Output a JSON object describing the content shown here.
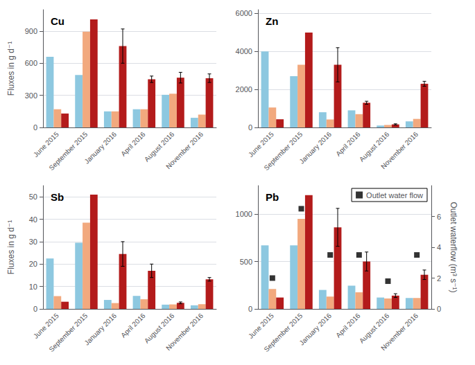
{
  "chart_data": [
    {
      "type": "bar",
      "title": "Cu",
      "categories": [
        "June 2015",
        "September 2015",
        "January 2016",
        "April 2016",
        "August 2016",
        "November 2016"
      ],
      "series": [
        {
          "color": "#8DC8E0",
          "values": [
            660,
            490,
            150,
            170,
            305,
            90
          ]
        },
        {
          "color": "#F2A97E",
          "values": [
            170,
            895,
            150,
            170,
            315,
            120
          ]
        },
        {
          "color": "#B31B1B",
          "values": [
            130,
            1010,
            760,
            450,
            465,
            460
          ],
          "errors": [
            0,
            0,
            160,
            30,
            50,
            40
          ]
        }
      ],
      "ylim": [
        0,
        1100
      ],
      "yticks": [
        0,
        300,
        600,
        900
      ],
      "ylabel": "Fluxes in g d⁻¹",
      "grid": true
    },
    {
      "type": "bar",
      "title": "Zn",
      "categories": [
        "June 2015",
        "September 2015",
        "January 2016",
        "April 2016",
        "August 2016",
        "November 2016"
      ],
      "series": [
        {
          "color": "#8DC8E0",
          "values": [
            4000,
            2700,
            800,
            900,
            100,
            320
          ]
        },
        {
          "color": "#F2A97E",
          "values": [
            1050,
            3300,
            420,
            700,
            130,
            450
          ]
        },
        {
          "color": "#B31B1B",
          "values": [
            430,
            5000,
            3300,
            1300,
            160,
            2300
          ],
          "errors": [
            0,
            0,
            900,
            80,
            30,
            130
          ]
        }
      ],
      "ylim": [
        0,
        6200
      ],
      "yticks": [
        0,
        2000,
        4000,
        6000
      ],
      "grid": true
    },
    {
      "type": "bar",
      "title": "Sb",
      "categories": [
        "June 2015",
        "September 2015",
        "January 2016",
        "April 2016",
        "August 2016",
        "November 2016"
      ],
      "series": [
        {
          "color": "#8DC8E0",
          "values": [
            22.5,
            29.5,
            4.0,
            5.8,
            1.9,
            1.6
          ]
        },
        {
          "color": "#F2A97E",
          "values": [
            5.7,
            38.5,
            2.6,
            4.3,
            2.0,
            2.1
          ]
        },
        {
          "color": "#B31B1B",
          "values": [
            3.2,
            51.0,
            24.5,
            17.0,
            2.7,
            13.2
          ],
          "errors": [
            0.0,
            0.0,
            5.5,
            3.0,
            0.4,
            0.8
          ]
        }
      ],
      "ylim": [
        0,
        55
      ],
      "yticks": [
        0,
        10,
        20,
        30,
        40,
        50
      ],
      "ylabel": "Fluxes in g d⁻¹",
      "grid": true
    },
    {
      "type": "bar",
      "title": "Pb",
      "categories": [
        "June 2015",
        "September 2015",
        "January 2016",
        "April 2016",
        "August 2016",
        "November 2016"
      ],
      "series": [
        {
          "color": "#8DC8E0",
          "values": [
            670,
            670,
            200,
            245,
            120,
            115
          ]
        },
        {
          "color": "#F2A97E",
          "values": [
            210,
            950,
            130,
            175,
            110,
            115
          ]
        },
        {
          "color": "#B31B1B",
          "values": [
            120,
            1200,
            860,
            500,
            140,
            360
          ],
          "errors": [
            0,
            0,
            200,
            100,
            20,
            50
          ]
        },
        {
          "name": "Outlet water flow",
          "type": "scatter",
          "marker": "square",
          "color": "#000000",
          "axis": "y2",
          "values": [
            2.0,
            6.5,
            3.5,
            3.5,
            1.8,
            3.5
          ]
        }
      ],
      "ylim": [
        0,
        1300
      ],
      "yticks": [
        0,
        500,
        1000
      ],
      "y2lim": [
        0,
        8
      ],
      "y2ticks": [
        0,
        2,
        4,
        6
      ],
      "y2label": "Outlet waterflow (m³ s⁻¹)",
      "legend": "upper right",
      "grid": true
    }
  ]
}
